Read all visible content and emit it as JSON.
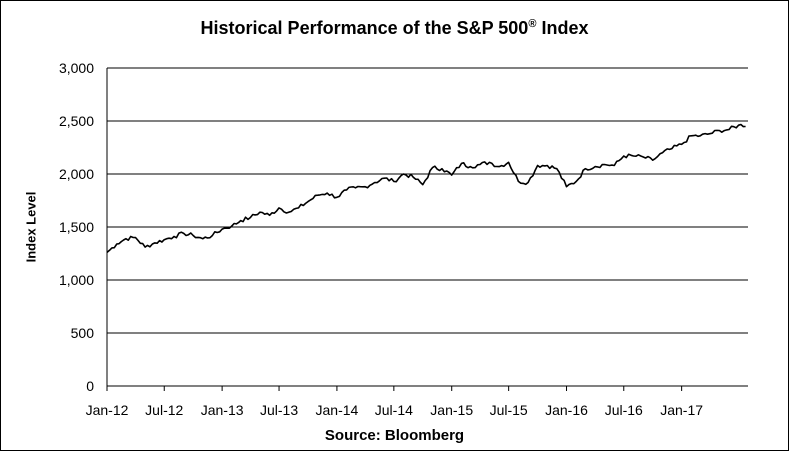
{
  "chart_data": {
    "type": "line",
    "title": "Historical Performance of the S&P 500",
    "title_mark": "®",
    "title_suffix": "Index",
    "ylabel": "Index Level",
    "source": "Source: Bloomberg",
    "ylim": [
      0,
      3000
    ],
    "yticks": [
      "0",
      "500",
      "1,000",
      "1,500",
      "2,000",
      "2,500",
      "3,000"
    ],
    "ytick_values": [
      0,
      500,
      1000,
      1500,
      2000,
      2500,
      3000
    ],
    "xticks": [
      "Jan-12",
      "Jul-12",
      "Jan-13",
      "Jul-13",
      "Jan-14",
      "Jul-14",
      "Jan-15",
      "Jul-15",
      "Jan-16",
      "Jul-16",
      "Jan-17"
    ],
    "xtick_dates": [
      "2012-01-01",
      "2012-07-01",
      "2013-01-01",
      "2013-07-01",
      "2014-01-01",
      "2014-07-01",
      "2015-01-01",
      "2015-07-01",
      "2016-01-01",
      "2016-07-01",
      "2017-01-01"
    ],
    "xlim": [
      "2012-01-01",
      "2017-07-31"
    ],
    "grid": "horizontal",
    "series": [
      {
        "color": "#000000",
        "x": [
          "2012-01-01",
          "2012-02-01",
          "2012-03-01",
          "2012-04-01",
          "2012-05-01",
          "2012-06-01",
          "2012-07-01",
          "2012-08-01",
          "2012-09-01",
          "2012-10-01",
          "2012-11-01",
          "2012-12-01",
          "2013-01-01",
          "2013-02-01",
          "2013-03-01",
          "2013-04-01",
          "2013-05-01",
          "2013-06-01",
          "2013-07-01",
          "2013-08-01",
          "2013-09-01",
          "2013-10-01",
          "2013-11-01",
          "2013-12-01",
          "2014-01-01",
          "2014-02-01",
          "2014-03-01",
          "2014-04-01",
          "2014-05-01",
          "2014-06-01",
          "2014-07-01",
          "2014-08-01",
          "2014-09-01",
          "2014-10-01",
          "2014-11-01",
          "2014-12-01",
          "2015-01-01",
          "2015-02-01",
          "2015-03-01",
          "2015-04-01",
          "2015-05-01",
          "2015-06-01",
          "2015-07-01",
          "2015-08-01",
          "2015-09-01",
          "2015-10-01",
          "2015-11-01",
          "2015-12-01",
          "2016-01-01",
          "2016-02-01",
          "2016-03-01",
          "2016-04-01",
          "2016-05-01",
          "2016-06-01",
          "2016-07-01",
          "2016-08-01",
          "2016-09-01",
          "2016-10-01",
          "2016-11-01",
          "2016-12-01",
          "2017-01-01",
          "2017-02-01",
          "2017-03-01",
          "2017-04-01",
          "2017-05-01",
          "2017-06-01",
          "2017-07-01"
        ],
        "values": [
          1260,
          1340,
          1390,
          1400,
          1310,
          1350,
          1380,
          1410,
          1440,
          1420,
          1390,
          1420,
          1480,
          1510,
          1560,
          1590,
          1640,
          1610,
          1680,
          1640,
          1680,
          1740,
          1800,
          1820,
          1780,
          1850,
          1870,
          1880,
          1920,
          1960,
          1930,
          2000,
          1970,
          1900,
          2060,
          2050,
          1990,
          2100,
          2070,
          2090,
          2110,
          2070,
          2110,
          1930,
          1920,
          2080,
          2080,
          2050,
          1880,
          1930,
          2050,
          2070,
          2090,
          2080,
          2170,
          2170,
          2160,
          2130,
          2200,
          2240,
          2280,
          2360,
          2360,
          2380,
          2410,
          2420,
          2460
        ]
      }
    ]
  }
}
